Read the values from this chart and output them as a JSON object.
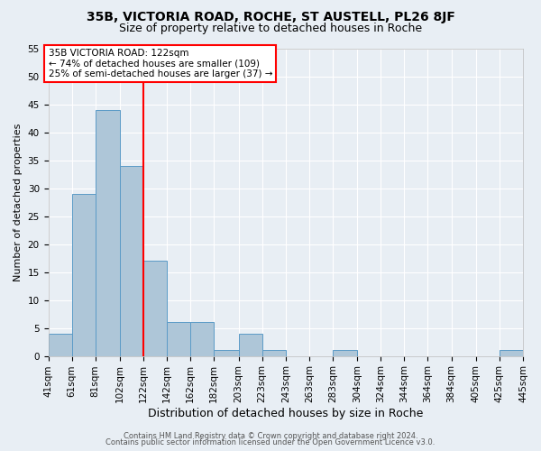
{
  "title1": "35B, VICTORIA ROAD, ROCHE, ST AUSTELL, PL26 8JF",
  "title2": "Size of property relative to detached houses in Roche",
  "xlabel": "Distribution of detached houses by size in Roche",
  "ylabel": "Number of detached properties",
  "footnote1": "Contains HM Land Registry data © Crown copyright and database right 2024.",
  "footnote2": "Contains public sector information licensed under the Open Government Licence v3.0.",
  "bins": [
    41,
    61,
    81,
    102,
    122,
    142,
    162,
    182,
    203,
    223,
    243,
    263,
    283,
    304,
    324,
    344,
    364,
    384,
    405,
    425,
    445
  ],
  "counts": [
    4,
    29,
    44,
    34,
    17,
    6,
    6,
    1,
    4,
    1,
    0,
    0,
    1,
    0,
    0,
    0,
    0,
    0,
    0,
    1
  ],
  "bar_color": "#aec6d8",
  "bar_edge_color": "#5b9bc7",
  "vline_x": 122,
  "vline_color": "red",
  "annotation_box_color": "white",
  "annotation_border_color": "red",
  "annotation_line1": "35B VICTORIA ROAD: 122sqm",
  "annotation_line2": "← 74% of detached houses are smaller (109)",
  "annotation_line3": "25% of semi-detached houses are larger (37) →",
  "ylim": [
    0,
    55
  ],
  "yticks": [
    0,
    5,
    10,
    15,
    20,
    25,
    30,
    35,
    40,
    45,
    50,
    55
  ],
  "bg_color": "#e8eef4",
  "grid_color": "white",
  "title1_fontsize": 10,
  "title2_fontsize": 9,
  "xlabel_fontsize": 9,
  "ylabel_fontsize": 8,
  "tick_fontsize": 7.5,
  "annot_fontsize": 7.5,
  "footnote_fontsize": 6
}
